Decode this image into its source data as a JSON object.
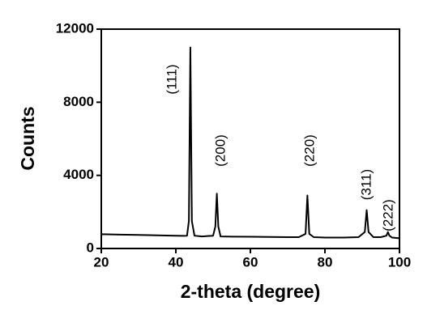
{
  "chart_data": {
    "type": "line",
    "x_label": "2-theta (degree)",
    "y_label": "Counts",
    "xlim": [
      20,
      100
    ],
    "xticks": [
      20,
      40,
      60,
      80,
      100
    ],
    "ylim": [
      0,
      12000
    ],
    "yticks": [
      0,
      4000,
      8000,
      12000
    ],
    "x": [
      20,
      25,
      30,
      35,
      40,
      42,
      43,
      43.5,
      43.9,
      44.3,
      45,
      47,
      50,
      50.6,
      51,
      51.4,
      52,
      55,
      60,
      65,
      70,
      73,
      74.8,
      75.3,
      75.8,
      77,
      80,
      85,
      89,
      90.7,
      91.2,
      91.7,
      93,
      95,
      96.5,
      96.9,
      97.3,
      98,
      100
    ],
    "series": [
      {
        "color": "#000000",
        "values": [
          780,
          760,
          740,
          720,
          700,
          690,
          700,
          1500,
          11000,
          1500,
          700,
          660,
          700,
          1200,
          3000,
          1200,
          660,
          650,
          640,
          630,
          620,
          620,
          800,
          2900,
          800,
          620,
          600,
          600,
          620,
          900,
          2100,
          900,
          620,
          620,
          700,
          900,
          700,
          600,
          560
        ]
      }
    ],
    "annotations": [
      "(111)",
      "(200)",
      "(220)",
      "(311)",
      "(222)"
    ]
  }
}
